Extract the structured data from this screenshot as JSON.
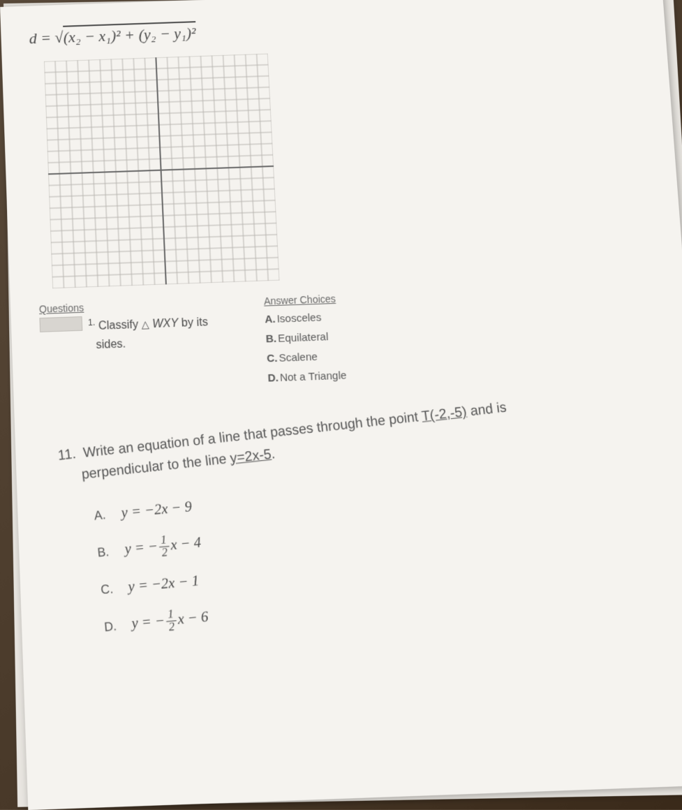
{
  "formula": {
    "lhs": "d =",
    "radicand": "(x₂ − x₁)² + (y₂ − y₁)²"
  },
  "grid": {
    "rows": 20,
    "cols": 20,
    "cell_size": 16,
    "line_color": "#b8b5b0",
    "axis_color": "#6a6a6a",
    "background": "#f5f3ef"
  },
  "question1": {
    "section_label": "Questions",
    "number": "1.",
    "text_prefix": "Classify",
    "triangle": "△",
    "triangle_name": "WXY",
    "text_suffix": "by its",
    "text_line2": "sides."
  },
  "answers": {
    "section_label": "Answer Choices",
    "items": [
      {
        "letter": "A.",
        "text": "Isosceles"
      },
      {
        "letter": "B.",
        "text": "Equilateral"
      },
      {
        "letter": "C.",
        "text": "Scalene"
      },
      {
        "letter": "D.",
        "text": "Not a Triangle"
      }
    ]
  },
  "question11": {
    "number": "11.",
    "text_part1": "Write an equation of a line that passes through the point",
    "point": "T(-2,-5)",
    "text_part2": "and is",
    "text_part3": "perpendicular to the line",
    "line_eq": "y=2x-5",
    "period": "."
  },
  "options11": [
    {
      "letter": "A.",
      "type": "simple",
      "expr": "y = −2x − 9"
    },
    {
      "letter": "B.",
      "type": "frac",
      "prefix": "y = −",
      "num": "1",
      "den": "2",
      "suffix": "x − 4"
    },
    {
      "letter": "C.",
      "type": "simple",
      "expr": "y = −2x − 1"
    },
    {
      "letter": "D.",
      "type": "frac",
      "prefix": "y = −",
      "num": "1",
      "den": "2",
      "suffix": "x − 6"
    }
  ]
}
